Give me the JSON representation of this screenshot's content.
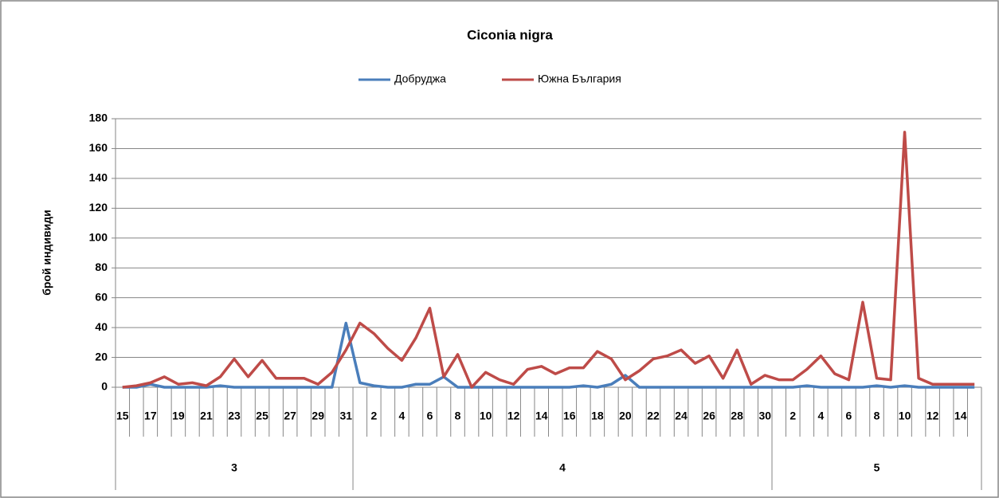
{
  "chart_data": {
    "type": "line",
    "title": "Ciconia nigra",
    "ylabel": "брой индивиди",
    "category_groups": [
      {
        "label": "3",
        "categories": [
          "15",
          null,
          "17",
          null,
          "19",
          null,
          "21",
          null,
          "23",
          null,
          "25",
          null,
          "27",
          null,
          "29",
          null,
          "31"
        ]
      },
      {
        "label": "4",
        "categories": [
          null,
          "2",
          null,
          "4",
          null,
          "6",
          null,
          "8",
          null,
          "10",
          null,
          "12",
          null,
          "14",
          null,
          "16",
          null,
          "18",
          null,
          "20",
          null,
          "22",
          null,
          "24",
          null,
          "26",
          null,
          "28",
          null,
          "30"
        ]
      },
      {
        "label": "5",
        "categories": [
          null,
          "2",
          null,
          "4",
          null,
          "6",
          null,
          "8",
          null,
          "10",
          null,
          "12",
          null,
          "14",
          null
        ]
      }
    ],
    "series": [
      {
        "name": "Добруджа",
        "color": "#4a7ebb",
        "values": [
          0,
          0,
          2,
          0,
          0,
          0,
          0,
          1,
          0,
          0,
          0,
          0,
          0,
          0,
          0,
          0,
          43,
          3,
          1,
          0,
          0,
          2,
          2,
          7,
          0,
          0,
          0,
          0,
          0,
          0,
          0,
          0,
          0,
          1,
          0,
          2,
          8,
          0,
          0,
          0,
          0,
          0,
          0,
          0,
          0,
          0,
          0,
          0,
          0,
          1,
          0,
          0,
          0,
          0,
          1,
          0,
          1,
          0,
          0,
          0,
          0,
          0
        ]
      },
      {
        "name": "Южна България",
        "color": "#be4b48",
        "values": [
          0,
          1,
          3,
          7,
          2,
          3,
          1,
          7,
          19,
          7,
          18,
          6,
          6,
          6,
          2,
          10,
          25,
          43,
          36,
          26,
          18,
          33,
          53,
          7,
          22,
          0,
          10,
          5,
          2,
          12,
          14,
          9,
          13,
          13,
          24,
          19,
          5,
          11,
          19,
          21,
          25,
          16,
          21,
          6,
          25,
          2,
          8,
          5,
          5,
          12,
          21,
          9,
          5,
          57,
          6,
          5,
          171,
          6,
          2,
          2,
          2,
          2
        ]
      }
    ],
    "ylim": [
      0,
      180
    ],
    "yticks": [
      0,
      20,
      40,
      60,
      80,
      100,
      120,
      140,
      160,
      180
    ],
    "grid": true,
    "legend": "top"
  }
}
